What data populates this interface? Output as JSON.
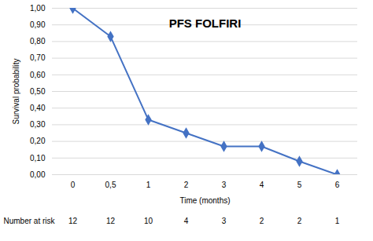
{
  "chart_data": {
    "type": "line",
    "title": "PFS FOLFIRI",
    "x_label": "Time (months)",
    "y_label": "Survival probability",
    "categories": [
      "0",
      "0,5",
      "1",
      "2",
      "3",
      "4",
      "5",
      "6"
    ],
    "values": [
      1.0,
      0.83,
      0.33,
      0.25,
      0.17,
      0.17,
      0.08,
      0.0
    ],
    "color": "#4472c4",
    "marker": "diamond",
    "ylim": [
      0,
      1
    ],
    "yticks": [
      {
        "value": 0,
        "label": "0,00"
      },
      {
        "value": 0.1,
        "label": "0,10"
      },
      {
        "value": 0.2,
        "label": "0,20"
      },
      {
        "value": 0.3,
        "label": "0,30"
      },
      {
        "value": 0.4,
        "label": "0,40"
      },
      {
        "value": 0.5,
        "label": "0,50"
      },
      {
        "value": 0.6,
        "label": "0,60"
      },
      {
        "value": 0.7,
        "label": "0,70"
      },
      {
        "value": 0.8,
        "label": "0,80"
      },
      {
        "value": 0.9,
        "label": "0,90"
      },
      {
        "value": 1,
        "label": "1,00"
      }
    ],
    "grid": true,
    "number_at_risk": {
      "label": "Number at risk",
      "values": [
        12,
        12,
        10,
        4,
        3,
        2,
        2,
        1
      ]
    }
  }
}
